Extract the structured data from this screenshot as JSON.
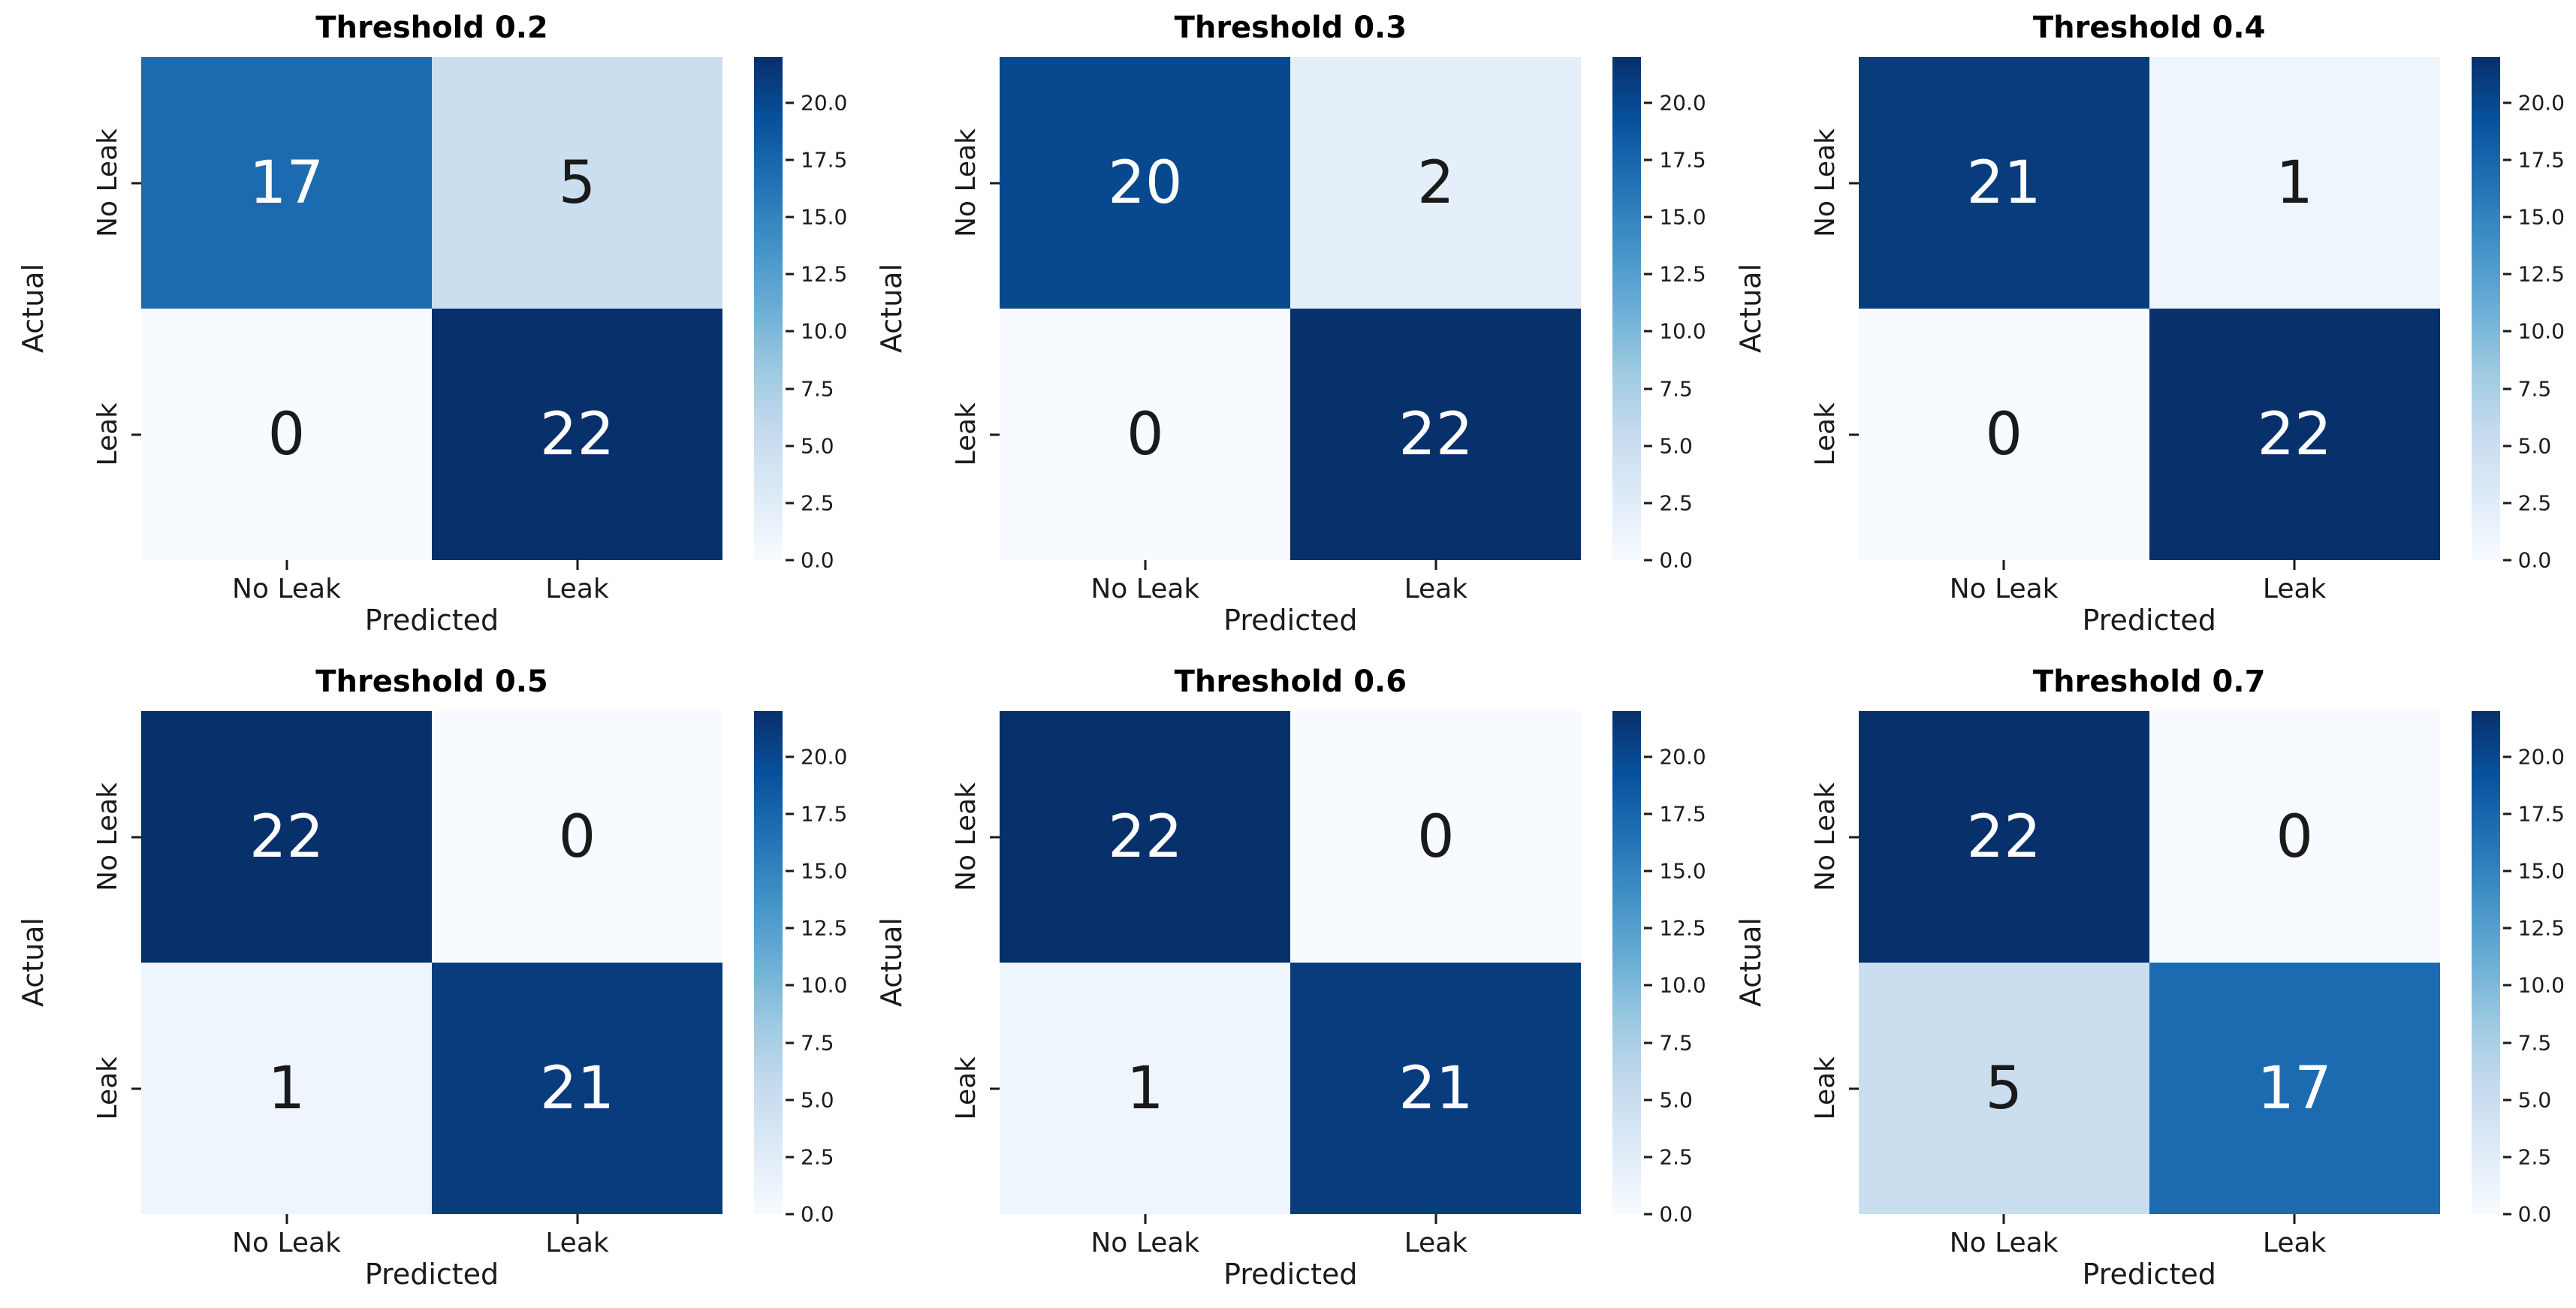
{
  "chart_data": [
    {
      "type": "heatmap",
      "title": "Threshold 0.2",
      "xlabel": "Predicted",
      "ylabel": "Actual",
      "x_tick_labels": [
        "No Leak",
        "Leak"
      ],
      "y_tick_labels": [
        "No Leak",
        "Leak"
      ],
      "values": [
        [
          17,
          5
        ],
        [
          0,
          22
        ]
      ],
      "vmin": 0,
      "vmax": 22,
      "colormap": "Blues",
      "colorbar_ticks": [
        "0.0",
        "2.5",
        "5.0",
        "7.5",
        "10.0",
        "12.5",
        "15.0",
        "17.5",
        "20.0"
      ],
      "legend_position": "right-colorbar"
    },
    {
      "type": "heatmap",
      "title": "Threshold 0.3",
      "xlabel": "Predicted",
      "ylabel": "Actual",
      "x_tick_labels": [
        "No Leak",
        "Leak"
      ],
      "y_tick_labels": [
        "No Leak",
        "Leak"
      ],
      "values": [
        [
          20,
          2
        ],
        [
          0,
          22
        ]
      ],
      "vmin": 0,
      "vmax": 22,
      "colormap": "Blues",
      "colorbar_ticks": [
        "0.0",
        "2.5",
        "5.0",
        "7.5",
        "10.0",
        "12.5",
        "15.0",
        "17.5",
        "20.0"
      ],
      "legend_position": "right-colorbar"
    },
    {
      "type": "heatmap",
      "title": "Threshold 0.4",
      "xlabel": "Predicted",
      "ylabel": "Actual",
      "x_tick_labels": [
        "No Leak",
        "Leak"
      ],
      "y_tick_labels": [
        "No Leak",
        "Leak"
      ],
      "values": [
        [
          21,
          1
        ],
        [
          0,
          22
        ]
      ],
      "vmin": 0,
      "vmax": 22,
      "colormap": "Blues",
      "colorbar_ticks": [
        "0.0",
        "2.5",
        "5.0",
        "7.5",
        "10.0",
        "12.5",
        "15.0",
        "17.5",
        "20.0"
      ],
      "legend_position": "right-colorbar"
    },
    {
      "type": "heatmap",
      "title": "Threshold 0.5",
      "xlabel": "Predicted",
      "ylabel": "Actual",
      "x_tick_labels": [
        "No Leak",
        "Leak"
      ],
      "y_tick_labels": [
        "No Leak",
        "Leak"
      ],
      "values": [
        [
          22,
          0
        ],
        [
          1,
          21
        ]
      ],
      "vmin": 0,
      "vmax": 22,
      "colormap": "Blues",
      "colorbar_ticks": [
        "0.0",
        "2.5",
        "5.0",
        "7.5",
        "10.0",
        "12.5",
        "15.0",
        "17.5",
        "20.0"
      ],
      "legend_position": "right-colorbar"
    },
    {
      "type": "heatmap",
      "title": "Threshold 0.6",
      "xlabel": "Predicted",
      "ylabel": "Actual",
      "x_tick_labels": [
        "No Leak",
        "Leak"
      ],
      "y_tick_labels": [
        "No Leak",
        "Leak"
      ],
      "values": [
        [
          22,
          0
        ],
        [
          1,
          21
        ]
      ],
      "vmin": 0,
      "vmax": 22,
      "colormap": "Blues",
      "colorbar_ticks": [
        "0.0",
        "2.5",
        "5.0",
        "7.5",
        "10.0",
        "12.5",
        "15.0",
        "17.5",
        "20.0"
      ],
      "legend_position": "right-colorbar"
    },
    {
      "type": "heatmap",
      "title": "Threshold 0.7",
      "xlabel": "Predicted",
      "ylabel": "Actual",
      "x_tick_labels": [
        "No Leak",
        "Leak"
      ],
      "y_tick_labels": [
        "No Leak",
        "Leak"
      ],
      "values": [
        [
          22,
          0
        ],
        [
          5,
          17
        ]
      ],
      "vmin": 0,
      "vmax": 22,
      "colormap": "Blues",
      "colorbar_ticks": [
        "0.0",
        "2.5",
        "5.0",
        "7.5",
        "10.0",
        "12.5",
        "15.0",
        "17.5",
        "20.0"
      ],
      "legend_position": "right-colorbar"
    }
  ]
}
